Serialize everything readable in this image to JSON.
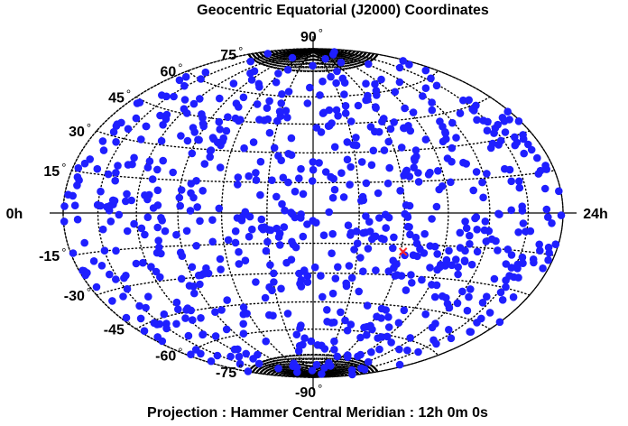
{
  "chart_data": {
    "type": "scatter",
    "title": "Geocentric Equatorial (J2000)  Coordinates",
    "footer": "Projection : Hammer   Central Meridian : 12h 0m 0s",
    "projection": "hammer",
    "central_meridian_hours": 12,
    "x_unit": "hours of right ascension",
    "y_unit": "degrees of declination",
    "xlim": [
      0,
      24
    ],
    "ylim": [
      -90,
      90
    ],
    "grid": true,
    "ra_labels": [
      {
        "text": "0h",
        "ra": 0
      },
      {
        "text": "24h",
        "ra": 24
      }
    ],
    "dec_labels": [
      {
        "text": "90",
        "dec": 90
      },
      {
        "text": "75",
        "dec": 75
      },
      {
        "text": "60",
        "dec": 60
      },
      {
        "text": "45",
        "dec": 45
      },
      {
        "text": "30",
        "dec": 30
      },
      {
        "text": "15",
        "dec": 15
      },
      {
        "text": "-15",
        "dec": -15
      },
      {
        "text": "-30",
        "dec": -30
      },
      {
        "text": "-45",
        "dec": -45
      },
      {
        "text": "-60",
        "dec": -60
      },
      {
        "text": "-75",
        "dec": -75
      },
      {
        "text": "-90",
        "dec": -90
      }
    ],
    "degree_symbol": "°",
    "series": [
      {
        "marker": "filled-circle",
        "color": "#1f1fff",
        "random_seed": 12345,
        "point_count": 760
      },
      {
        "marker": "x",
        "color": "#ff2a2a",
        "points": [
          {
            "ra": 16.1,
            "dec": -18.5
          }
        ]
      }
    ],
    "colors": {
      "outline": "#000000",
      "grid": "#000000",
      "points": "#1f1fff",
      "highlight": "#ff2a2a"
    }
  }
}
